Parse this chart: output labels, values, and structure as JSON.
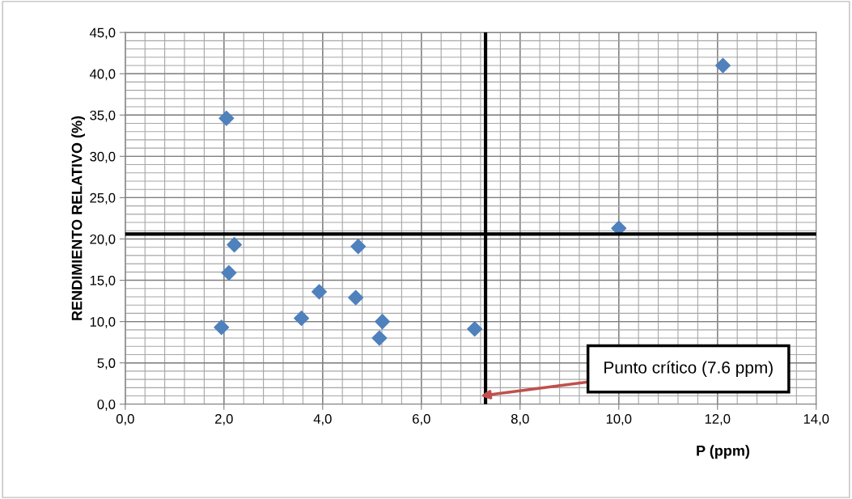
{
  "chart_data": {
    "type": "scatter",
    "xlabel": "P (ppm)",
    "ylabel": "RENDIMIENTO RELATIVO (%)",
    "x": [
      2.05,
      12.11,
      10.0,
      2.21,
      4.72,
      2.1,
      3.93,
      4.67,
      3.57,
      5.21,
      5.15,
      1.95,
      7.08
    ],
    "series": [
      {
        "color": "#4f81bd",
        "values": [
          34.6,
          41.0,
          21.3,
          19.3,
          19.1,
          15.9,
          13.6,
          12.9,
          10.4,
          10.0,
          8.0,
          9.3,
          9.1
        ]
      }
    ],
    "marker": "diamond",
    "xlim": [
      0,
      14
    ],
    "ylim": [
      0,
      45
    ],
    "xticks": [
      {
        "value": 0,
        "label": "0,0"
      },
      {
        "value": 2,
        "label": "2,0"
      },
      {
        "value": 4,
        "label": "4,0"
      },
      {
        "value": 6,
        "label": "6,0"
      },
      {
        "value": 8,
        "label": "8,0"
      },
      {
        "value": 10,
        "label": "10,0"
      },
      {
        "value": 12,
        "label": "12,0"
      },
      {
        "value": 14,
        "label": "14,0"
      }
    ],
    "yticks": [
      {
        "value": 0,
        "label": "0,0"
      },
      {
        "value": 5,
        "label": "5,0"
      },
      {
        "value": 10,
        "label": "10,0"
      },
      {
        "value": 15,
        "label": "15,0"
      },
      {
        "value": 20,
        "label": "20,0"
      },
      {
        "value": 25,
        "label": "25,0"
      },
      {
        "value": 30,
        "label": "30,0"
      },
      {
        "value": 35,
        "label": "35,0"
      },
      {
        "value": 40,
        "label": "40,0"
      },
      {
        "value": 45,
        "label": "45,0"
      }
    ],
    "grid": true,
    "ref_lines": [
      {
        "axis": "x",
        "value": 7.3,
        "color": "#000000"
      },
      {
        "axis": "y",
        "value": 20.6,
        "color": "#000000"
      }
    ],
    "annotations": [
      {
        "text": "Punto crítico (7.6 ppm)",
        "x": 7.2,
        "y": 1.0
      }
    ]
  }
}
